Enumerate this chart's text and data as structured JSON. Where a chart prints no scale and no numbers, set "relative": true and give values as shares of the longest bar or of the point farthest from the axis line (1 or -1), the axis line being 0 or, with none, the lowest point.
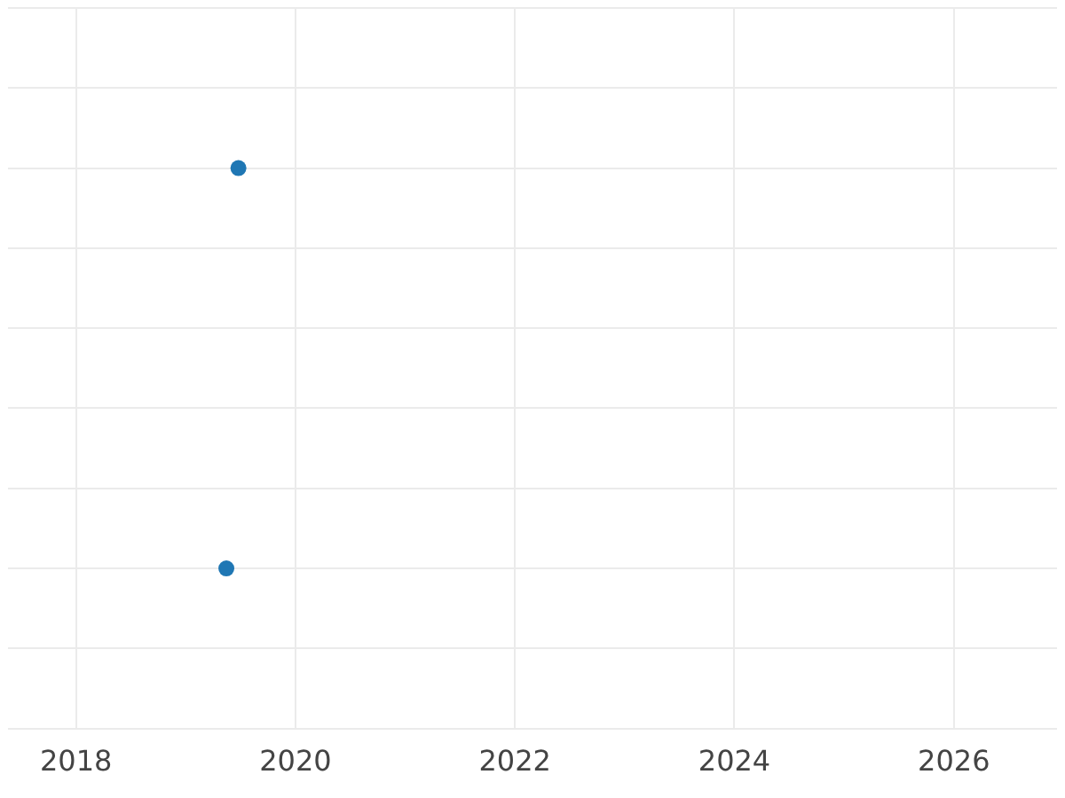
{
  "chart_data": {
    "type": "scatter",
    "relative": true,
    "x": [
      2019.37,
      2019.48
    ],
    "series": [
      {
        "color": "#1f77b4",
        "values": [
          0,
          1
        ]
      }
    ],
    "xlim": [
      2017.38,
      2026.94
    ],
    "xticks": [
      2018,
      2020,
      2022,
      2024,
      2026
    ],
    "grid": true,
    "marker": "circle",
    "legend": false
  }
}
